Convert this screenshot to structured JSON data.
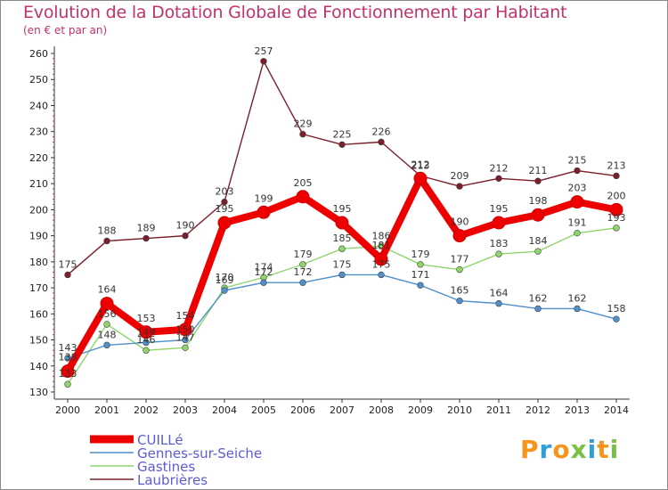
{
  "header": {
    "title": "Evolution de la Dotation Globale de Fonctionnement par Habitant",
    "subtitle": "(en € et par an)"
  },
  "logo": {
    "text": "Proxiti",
    "colors": [
      "#f7941d",
      "#2f9fd8",
      "#f7941d",
      "#7bc043",
      "#2f9fd8",
      "#f7941d",
      "#7bc043"
    ]
  },
  "chart_data": {
    "type": "line",
    "title": "Evolution de la Dotation Globale de Fonctionnement par Habitant",
    "subtitle": "(en € et par an)",
    "x": [
      2000,
      2001,
      2002,
      2003,
      2004,
      2005,
      2006,
      2007,
      2008,
      2009,
      2010,
      2011,
      2012,
      2013,
      2014
    ],
    "ylim": [
      130,
      260
    ],
    "yticks": [
      130,
      140,
      150,
      160,
      170,
      180,
      190,
      200,
      210,
      220,
      230,
      240,
      250,
      260
    ],
    "grid": false,
    "legend": "bottom-left",
    "series": [
      {
        "name": "Laubrières",
        "color": "#7a1f2b",
        "values": [
          175,
          188,
          189,
          190,
          203,
          257,
          229,
          225,
          226,
          213,
          209,
          212,
          211,
          215,
          213
        ]
      },
      {
        "name": "Gastines",
        "color": "#8fd66a",
        "values": [
          133,
          156,
          146,
          147,
          170,
          174,
          179,
          185,
          186,
          179,
          177,
          183,
          184,
          191,
          193
        ]
      },
      {
        "name": "Gennes-sur-Seiche",
        "color": "#4f8fcc",
        "values": [
          143,
          148,
          149,
          150,
          169,
          172,
          172,
          175,
          175,
          171,
          165,
          164,
          162,
          162,
          158
        ]
      },
      {
        "name": "CUILLé",
        "color": "#ee0000",
        "values": [
          138,
          164,
          153,
          154,
          195,
          199,
          205,
          195,
          181,
          212,
          190,
          195,
          198,
          203,
          200
        ]
      }
    ]
  }
}
